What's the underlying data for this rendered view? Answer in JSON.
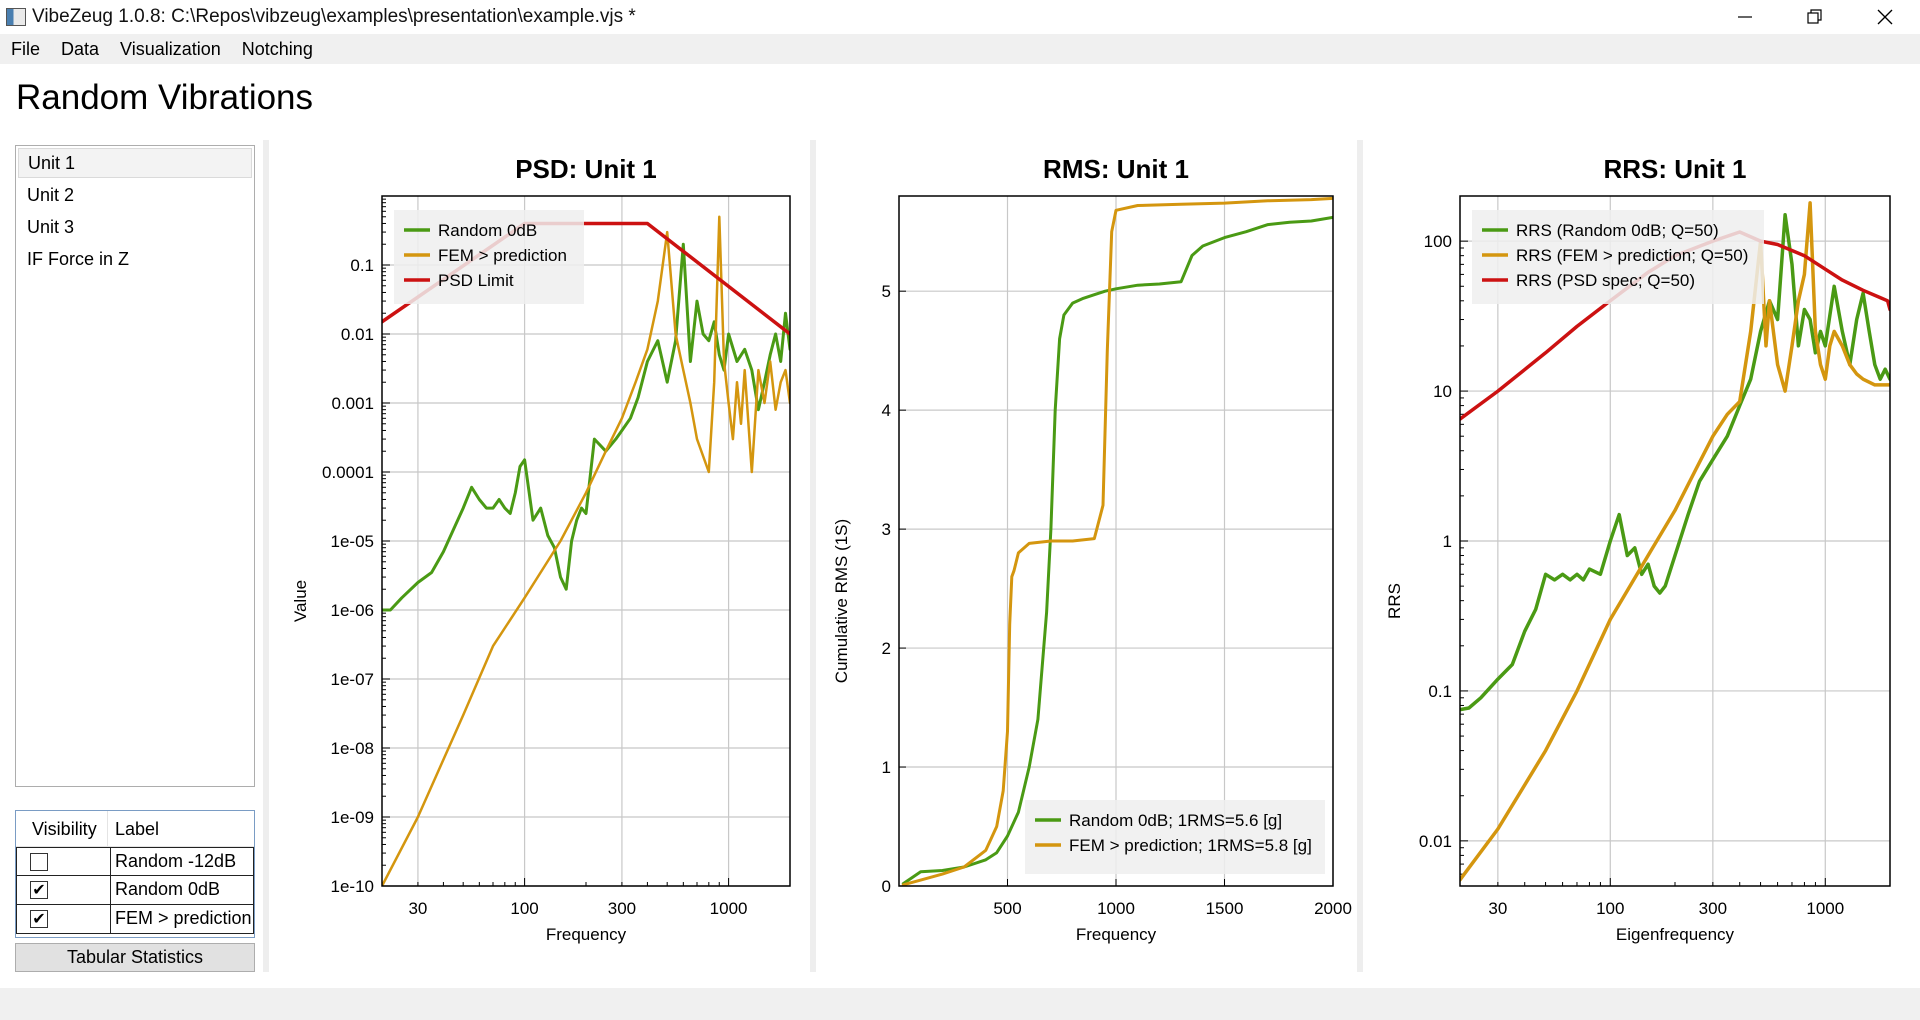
{
  "window": {
    "title": "VibeZeug 1.0.8: C:\\Repos\\vibzeug\\examples\\presentation\\example.vjs *"
  },
  "menu": [
    "File",
    "Data",
    "Visualization",
    "Notching"
  ],
  "page_title": "Random Vibrations",
  "units": [
    {
      "label": "Unit 1",
      "selected": true
    },
    {
      "label": "Unit 2",
      "selected": false
    },
    {
      "label": "Unit 3",
      "selected": false
    },
    {
      "label": "IF Force in Z",
      "selected": false
    }
  ],
  "visibility_table": {
    "headers": [
      "Visibility",
      "Label"
    ],
    "rows": [
      {
        "visible": false,
        "label": "Random -12dB"
      },
      {
        "visible": true,
        "label": "Random 0dB"
      },
      {
        "visible": true,
        "label": "FEM > prediction"
      }
    ]
  },
  "tabular_statistics_label": "Tabular Statistics",
  "colors": {
    "green": "#4a9a14",
    "orange": "#d4960f",
    "red": "#cc1111",
    "grid": "#c8c8c8"
  },
  "chart_data": [
    {
      "type": "line",
      "title": "PSD: Unit 1",
      "xlabel": "Frequency",
      "ylabel": "Value",
      "xscale": "log",
      "yscale": "log",
      "xlim": [
        20,
        2000
      ],
      "ylim": [
        1e-10,
        1
      ],
      "xticks": [
        {
          "v": 30,
          "label": "30"
        },
        {
          "v": 100,
          "label": "100"
        },
        {
          "v": 300,
          "label": "300"
        },
        {
          "v": 1000,
          "label": "1000"
        }
      ],
      "yticks": [
        {
          "v": 0.1,
          "label": "0.1"
        },
        {
          "v": 0.01,
          "label": "0.01"
        },
        {
          "v": 0.001,
          "label": "0.001"
        },
        {
          "v": 0.0001,
          "label": "0.0001"
        },
        {
          "v": 1e-05,
          "label": "1e-05"
        },
        {
          "v": 1e-06,
          "label": "1e-06"
        },
        {
          "v": 1e-07,
          "label": "1e-07"
        },
        {
          "v": 1e-08,
          "label": "1e-08"
        },
        {
          "v": 1e-09,
          "label": "1e-09"
        },
        {
          "v": 1e-10,
          "label": "1e-10"
        }
      ],
      "legend": {
        "position": "top-left",
        "entries": [
          {
            "name": "Random 0dB",
            "color": "#4a9a14"
          },
          {
            "name": "FEM > prediction",
            "color": "#d4960f"
          },
          {
            "name": "PSD Limit",
            "color": "#cc1111"
          }
        ]
      },
      "series": [
        {
          "name": "Random 0dB",
          "color": "#4a9a14",
          "width": 3,
          "x": [
            20,
            22,
            25,
            30,
            35,
            40,
            45,
            50,
            55,
            60,
            65,
            70,
            75,
            80,
            85,
            90,
            95,
            100,
            110,
            120,
            130,
            140,
            150,
            160,
            170,
            180,
            190,
            200,
            220,
            250,
            280,
            300,
            330,
            360,
            400,
            450,
            500,
            550,
            600,
            650,
            700,
            750,
            800,
            850,
            900,
            950,
            1000,
            1100,
            1200,
            1300,
            1400,
            1500,
            1600,
            1700,
            1800,
            1900,
            2000
          ],
          "y": [
            1e-06,
            1e-06,
            1.5e-06,
            2.5e-06,
            3.5e-06,
            7e-06,
            1.5e-05,
            3e-05,
            6e-05,
            4e-05,
            3e-05,
            3e-05,
            4e-05,
            3e-05,
            2.5e-05,
            5e-05,
            0.00012,
            0.00015,
            2e-05,
            3e-05,
            1.2e-05,
            8e-06,
            3e-06,
            2e-06,
            1e-05,
            2e-05,
            3e-05,
            2.5e-05,
            0.0003,
            0.0002,
            0.0003,
            0.0004,
            0.0006,
            0.0012,
            0.004,
            0.008,
            0.002,
            0.008,
            0.2,
            0.004,
            0.03,
            0.01,
            0.008,
            0.015,
            0.005,
            0.003,
            0.01,
            0.004,
            0.006,
            0.003,
            0.0008,
            0.002,
            0.005,
            0.01,
            0.004,
            0.02,
            0.006
          ]
        },
        {
          "name": "FEM > prediction",
          "color": "#d4960f",
          "width": 2.5,
          "x": [
            20,
            30,
            50,
            70,
            100,
            150,
            200,
            250,
            300,
            350,
            400,
            450,
            500,
            550,
            600,
            650,
            700,
            800,
            850,
            900,
            950,
            1000,
            1050,
            1100,
            1150,
            1200,
            1300,
            1400,
            1500,
            1600,
            1700,
            1800,
            1900,
            2000
          ],
          "y": [
            1e-10,
            1e-09,
            3e-08,
            3e-07,
            1.5e-06,
            1e-05,
            5e-05,
            0.0002,
            0.0006,
            0.002,
            0.006,
            0.03,
            0.3,
            0.01,
            0.003,
            0.001,
            0.0003,
            0.0001,
            0.002,
            0.5,
            0.004,
            0.001,
            0.0003,
            0.002,
            0.0005,
            0.003,
            0.0001,
            0.003,
            0.001,
            0.004,
            0.0008,
            0.002,
            0.003,
            0.001
          ]
        },
        {
          "name": "PSD Limit",
          "color": "#cc1111",
          "width": 3.5,
          "x": [
            20,
            100,
            400,
            2000
          ],
          "y": [
            0.015,
            0.4,
            0.4,
            0.01
          ]
        }
      ]
    },
    {
      "type": "line",
      "title": "RMS: Unit 1",
      "xlabel": "Frequency",
      "ylabel": "Cumulative RMS (1S)",
      "xscale": "linear",
      "yscale": "linear",
      "xlim": [
        0,
        2000
      ],
      "ylim": [
        0,
        5.8
      ],
      "xticks": [
        {
          "v": 500,
          "label": "500"
        },
        {
          "v": 1000,
          "label": "1000"
        },
        {
          "v": 1500,
          "label": "1500"
        },
        {
          "v": 2000,
          "label": "2000"
        }
      ],
      "yticks": [
        {
          "v": 0,
          "label": "0"
        },
        {
          "v": 1,
          "label": "1"
        },
        {
          "v": 2,
          "label": "2"
        },
        {
          "v": 3,
          "label": "3"
        },
        {
          "v": 4,
          "label": "4"
        },
        {
          "v": 5,
          "label": "5"
        }
      ],
      "legend": {
        "position": "bottom-right",
        "entries": [
          {
            "name": "Random 0dB; 1RMS=5.6 [g]",
            "color": "#4a9a14"
          },
          {
            "name": "FEM > prediction; 1RMS=5.8 [g]",
            "color": "#d4960f"
          }
        ]
      },
      "series": [
        {
          "name": "Random 0dB; 1RMS=5.6 [g]",
          "color": "#4a9a14",
          "width": 3,
          "x": [
            20,
            100,
            200,
            300,
            400,
            450,
            500,
            550,
            600,
            640,
            680,
            700,
            720,
            740,
            760,
            780,
            800,
            850,
            900,
            950,
            1000,
            1100,
            1200,
            1300,
            1350,
            1400,
            1500,
            1600,
            1700,
            1800,
            1900,
            2000
          ],
          "y": [
            0.02,
            0.12,
            0.13,
            0.16,
            0.22,
            0.28,
            0.42,
            0.62,
            1.0,
            1.4,
            2.3,
            3.0,
            4.0,
            4.6,
            4.8,
            4.85,
            4.9,
            4.94,
            4.97,
            5.0,
            5.02,
            5.05,
            5.06,
            5.08,
            5.3,
            5.38,
            5.45,
            5.5,
            5.56,
            5.58,
            5.59,
            5.62
          ]
        },
        {
          "name": "FEM > prediction; 1RMS=5.8 [g]",
          "color": "#d4960f",
          "width": 3,
          "x": [
            20,
            100,
            200,
            300,
            400,
            450,
            480,
            500,
            510,
            520,
            530,
            550,
            600,
            700,
            800,
            900,
            940,
            960,
            980,
            1000,
            1100,
            1300,
            1500,
            1700,
            1900,
            2000
          ],
          "y": [
            0.01,
            0.05,
            0.1,
            0.16,
            0.3,
            0.5,
            0.8,
            1.3,
            2.2,
            2.6,
            2.65,
            2.8,
            2.88,
            2.9,
            2.9,
            2.92,
            3.2,
            4.5,
            5.5,
            5.68,
            5.72,
            5.73,
            5.74,
            5.76,
            5.77,
            5.78
          ]
        }
      ]
    },
    {
      "type": "line",
      "title": "RRS: Unit 1",
      "xlabel": "Eigenfrequency",
      "ylabel": "RRS",
      "xscale": "log",
      "yscale": "log",
      "xlim": [
        20,
        2000
      ],
      "ylim": [
        0.005,
        200
      ],
      "xticks": [
        {
          "v": 30,
          "label": "30"
        },
        {
          "v": 100,
          "label": "100"
        },
        {
          "v": 300,
          "label": "300"
        },
        {
          "v": 1000,
          "label": "1000"
        }
      ],
      "yticks": [
        {
          "v": 100,
          "label": "100"
        },
        {
          "v": 10,
          "label": "10"
        },
        {
          "v": 1,
          "label": "1"
        },
        {
          "v": 0.1,
          "label": "0.1"
        },
        {
          "v": 0.01,
          "label": "0.01"
        }
      ],
      "legend": {
        "position": "top-left",
        "entries": [
          {
            "name": "RRS (Random 0dB; Q=50)",
            "color": "#4a9a14"
          },
          {
            "name": "RRS (FEM > prediction; Q=50)",
            "color": "#d4960f"
          },
          {
            "name": "RRS (PSD spec; Q=50)",
            "color": "#cc1111"
          }
        ]
      },
      "series": [
        {
          "name": "RRS (Random 0dB; Q=50)",
          "color": "#4a9a14",
          "width": 3.5,
          "x": [
            20,
            22,
            25,
            30,
            35,
            40,
            45,
            50,
            55,
            60,
            65,
            70,
            75,
            80,
            90,
            100,
            110,
            120,
            130,
            140,
            150,
            160,
            170,
            180,
            200,
            230,
            260,
            300,
            350,
            400,
            450,
            500,
            550,
            600,
            650,
            700,
            750,
            800,
            850,
            900,
            950,
            1000,
            1100,
            1200,
            1300,
            1400,
            1500,
            1600,
            1700,
            1800,
            1900,
            2000
          ],
          "y": [
            0.075,
            0.077,
            0.09,
            0.12,
            0.15,
            0.25,
            0.35,
            0.6,
            0.55,
            0.6,
            0.55,
            0.6,
            0.55,
            0.65,
            0.6,
            1.0,
            1.5,
            0.8,
            0.9,
            0.6,
            0.7,
            0.5,
            0.45,
            0.5,
            0.8,
            1.5,
            2.5,
            3.5,
            5,
            8,
            12,
            25,
            40,
            30,
            150,
            70,
            20,
            35,
            30,
            18,
            25,
            20,
            50,
            25,
            15,
            30,
            45,
            25,
            15,
            12,
            14,
            12
          ]
        },
        {
          "name": "RRS (FEM > prediction; Q=50)",
          "color": "#d4960f",
          "width": 3.5,
          "x": [
            20,
            30,
            50,
            70,
            100,
            150,
            200,
            250,
            300,
            350,
            400,
            450,
            500,
            530,
            550,
            600,
            650,
            700,
            750,
            800,
            850,
            900,
            950,
            1000,
            1050,
            1100,
            1200,
            1300,
            1400,
            1500,
            1700,
            2000
          ],
          "y": [
            0.0055,
            0.012,
            0.04,
            0.1,
            0.3,
            0.8,
            1.6,
            3.0,
            5.0,
            7.0,
            8.5,
            25,
            100,
            20,
            40,
            15,
            10,
            20,
            40,
            60,
            180,
            25,
            15,
            12,
            20,
            25,
            20,
            15,
            13,
            12,
            11,
            11
          ]
        },
        {
          "name": "RRS (PSD spec; Q=50)",
          "color": "#cc1111",
          "width": 3.5,
          "x": [
            20,
            30,
            50,
            70,
            100,
            150,
            200,
            300,
            400,
            500,
            600,
            800,
            1000,
            1200,
            1500,
            1800,
            1950,
            2000
          ],
          "y": [
            6.5,
            10,
            18,
            27,
            40,
            62,
            80,
            100,
            115,
            100,
            95,
            80,
            65,
            55,
            47,
            42,
            40,
            35
          ]
        }
      ]
    }
  ]
}
